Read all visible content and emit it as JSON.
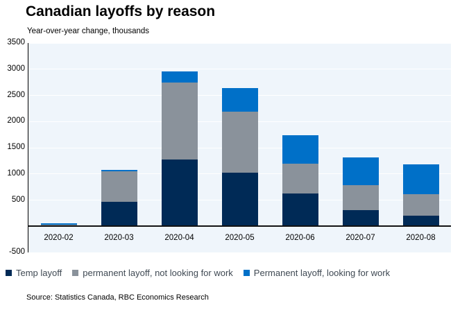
{
  "header": {
    "title": "Canadian layoffs by reason",
    "subtitle": "Year-over-year change, thousands"
  },
  "source_note": "Source: Statistics Canada, RBC Economics Research",
  "colors": {
    "plot_background": "#eff5fb",
    "gridline": "#ffffff",
    "axis_line": "#000000",
    "zero_line": "#121212",
    "legend_text": "#3f4953",
    "temp_layoff": "#002a56",
    "permanent_not_looking": "#8a929b",
    "permanent_looking": "#0070c8"
  },
  "chart_data": {
    "type": "bar",
    "stacked": true,
    "title": "Canadian layoffs by reason",
    "subtitle": "Year-over-year change, thousands",
    "xlabel": "",
    "ylabel": "Year-over-year change, thousands",
    "categories": [
      "2020-02",
      "2020-03",
      "2020-04",
      "2020-05",
      "2020-06",
      "2020-07",
      "2020-08"
    ],
    "series": [
      {
        "name": "Temp layoff",
        "color": "#002a56",
        "values": [
          25,
          465,
          1270,
          1030,
          630,
          310,
          200
        ]
      },
      {
        "name": "permanent layoff, not looking for work",
        "color": "#8a929b",
        "values": [
          5,
          585,
          1470,
          1155,
          570,
          470,
          415
        ]
      },
      {
        "name": "Permanent layoff, looking for work",
        "color": "#0070c8",
        "values": [
          30,
          30,
          220,
          460,
          545,
          530,
          565
        ]
      }
    ],
    "ylim": [
      -500,
      3500
    ],
    "ytick_step": 500,
    "ytick_hidden_values": [
      0
    ],
    "grid": true,
    "legend_position": "bottom"
  }
}
